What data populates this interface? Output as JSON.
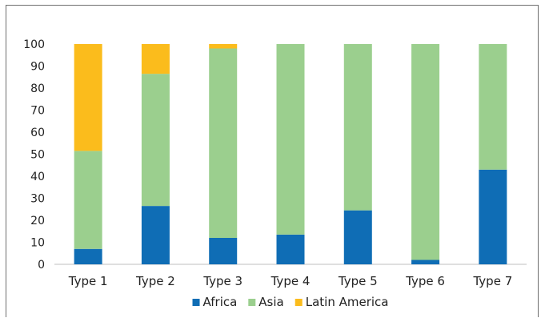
{
  "chart_data": {
    "type": "bar",
    "stacked": true,
    "categories": [
      "Type 1",
      "Type 2",
      "Type 3",
      "Type 4",
      "Type 5",
      "Type 6",
      "Type 7"
    ],
    "series": [
      {
        "name": "Africa",
        "color": "#0F6DB5",
        "values": [
          7,
          26.5,
          12,
          13.5,
          24.5,
          2,
          43
        ]
      },
      {
        "name": "Asia",
        "color": "#9BCF8E",
        "values": [
          44.5,
          60,
          86,
          86.5,
          75.5,
          98,
          57
        ]
      },
      {
        "name": "Latin America",
        "color": "#FBBC1C",
        "values": [
          48.5,
          13.5,
          2,
          0,
          0,
          0,
          0
        ]
      }
    ],
    "ylim": [
      0,
      100
    ],
    "yticks": [
      0,
      10,
      20,
      30,
      40,
      50,
      60,
      70,
      80,
      90,
      100
    ],
    "grid": false,
    "legend": "bottom",
    "title": "",
    "xlabel": "",
    "ylabel": ""
  }
}
